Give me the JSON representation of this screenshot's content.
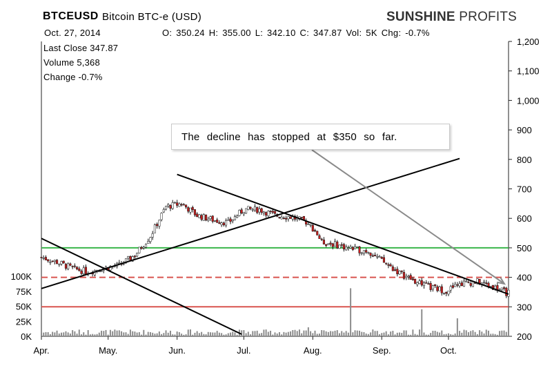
{
  "header": {
    "symbol": "BTCEUSD",
    "description": "Bitcoin BTC-e (USD)",
    "brand_bold": "SUNSHINE",
    "brand_light": "PROFITS",
    "date": "Oct. 27, 2014",
    "ohlc": "O: 350.24 H: 355.00 L: 342.10 C: 347.87 Vol: 5K Chg: -0.7%"
  },
  "stats": {
    "last_close": "Last Close 347.87",
    "volume": "Volume 5,368",
    "change": "Change -0.7%"
  },
  "annotation": "The decline has stopped at $350 so far.",
  "colors": {
    "up": "#ffffff",
    "down": "#cc1f1f",
    "green_line": "#39b54a",
    "red_line": "#d9534f",
    "trend": "#000000",
    "arrow": "#8a8a8a"
  },
  "chart_data": {
    "type": "candlestick",
    "x_tick_labels": [
      "Apr.",
      "May.",
      "Jun.",
      "Jul.",
      "Aug.",
      "Sep.",
      "Oct."
    ],
    "x_tick_dates": [
      "2014-04-01",
      "2014-05-01",
      "2014-06-01",
      "2014-07-01",
      "2014-08-01",
      "2014-09-01",
      "2014-10-01"
    ],
    "x_range": [
      "2014-04-01",
      "2014-10-28"
    ],
    "y_tick_labels": [
      "1,200",
      "1,100",
      "1,000",
      "900",
      "800",
      "700",
      "600",
      "500",
      "400",
      "300",
      "200"
    ],
    "ylim": [
      200,
      1200
    ],
    "volume_tick_labels": [
      "100K",
      "75K",
      "50K",
      "25K",
      "0K"
    ],
    "volume_ylim": [
      0,
      100000
    ],
    "horizontal_levels": [
      {
        "value": 500,
        "style": "solid",
        "color": "green"
      },
      {
        "value": 400,
        "style": "dashed",
        "color": "red"
      },
      {
        "value": 300,
        "style": "solid",
        "color": "red"
      }
    ],
    "trendlines": [
      {
        "start": [
          "2014-04-01",
          362
        ],
        "end": [
          "2014-10-06",
          803
        ]
      },
      {
        "start": [
          "2014-06-01",
          749
        ],
        "end": [
          "2014-10-28",
          343
        ]
      },
      {
        "start": [
          "2014-04-01",
          532
        ],
        "end": [
          "2014-06-30",
          207
        ]
      }
    ],
    "close_series": [
      [
        "2014-04-01",
        468
      ],
      [
        "2014-04-08",
        452
      ],
      [
        "2014-04-15",
        430
      ],
      [
        "2014-04-22",
        418
      ],
      [
        "2014-04-29",
        432
      ],
      [
        "2014-05-06",
        440
      ],
      [
        "2014-05-13",
        475
      ],
      [
        "2014-05-20",
        540
      ],
      [
        "2014-05-27",
        640
      ],
      [
        "2014-06-03",
        650
      ],
      [
        "2014-06-10",
        610
      ],
      [
        "2014-06-17",
        595
      ],
      [
        "2014-06-24",
        585
      ],
      [
        "2014-07-01",
        630
      ],
      [
        "2014-07-08",
        630
      ],
      [
        "2014-07-15",
        610
      ],
      [
        "2014-07-22",
        605
      ],
      [
        "2014-07-29",
        588
      ],
      [
        "2014-08-02",
        560
      ],
      [
        "2014-08-05",
        520
      ],
      [
        "2014-08-12",
        510
      ],
      [
        "2014-08-19",
        495
      ],
      [
        "2014-08-26",
        490
      ],
      [
        "2014-09-02",
        450
      ],
      [
        "2014-09-09",
        415
      ],
      [
        "2014-09-16",
        385
      ],
      [
        "2014-09-23",
        365
      ],
      [
        "2014-09-30",
        355
      ],
      [
        "2014-10-07",
        380
      ],
      [
        "2014-10-14",
        385
      ],
      [
        "2014-10-21",
        368
      ],
      [
        "2014-10-27",
        348
      ]
    ],
    "volume_spikes": [
      {
        "date": "2014-07-30",
        "value": 15000
      },
      {
        "date": "2014-08-18",
        "value": 80000
      },
      {
        "date": "2014-09-19",
        "value": 45000
      },
      {
        "date": "2014-10-05",
        "value": 30000
      }
    ]
  }
}
